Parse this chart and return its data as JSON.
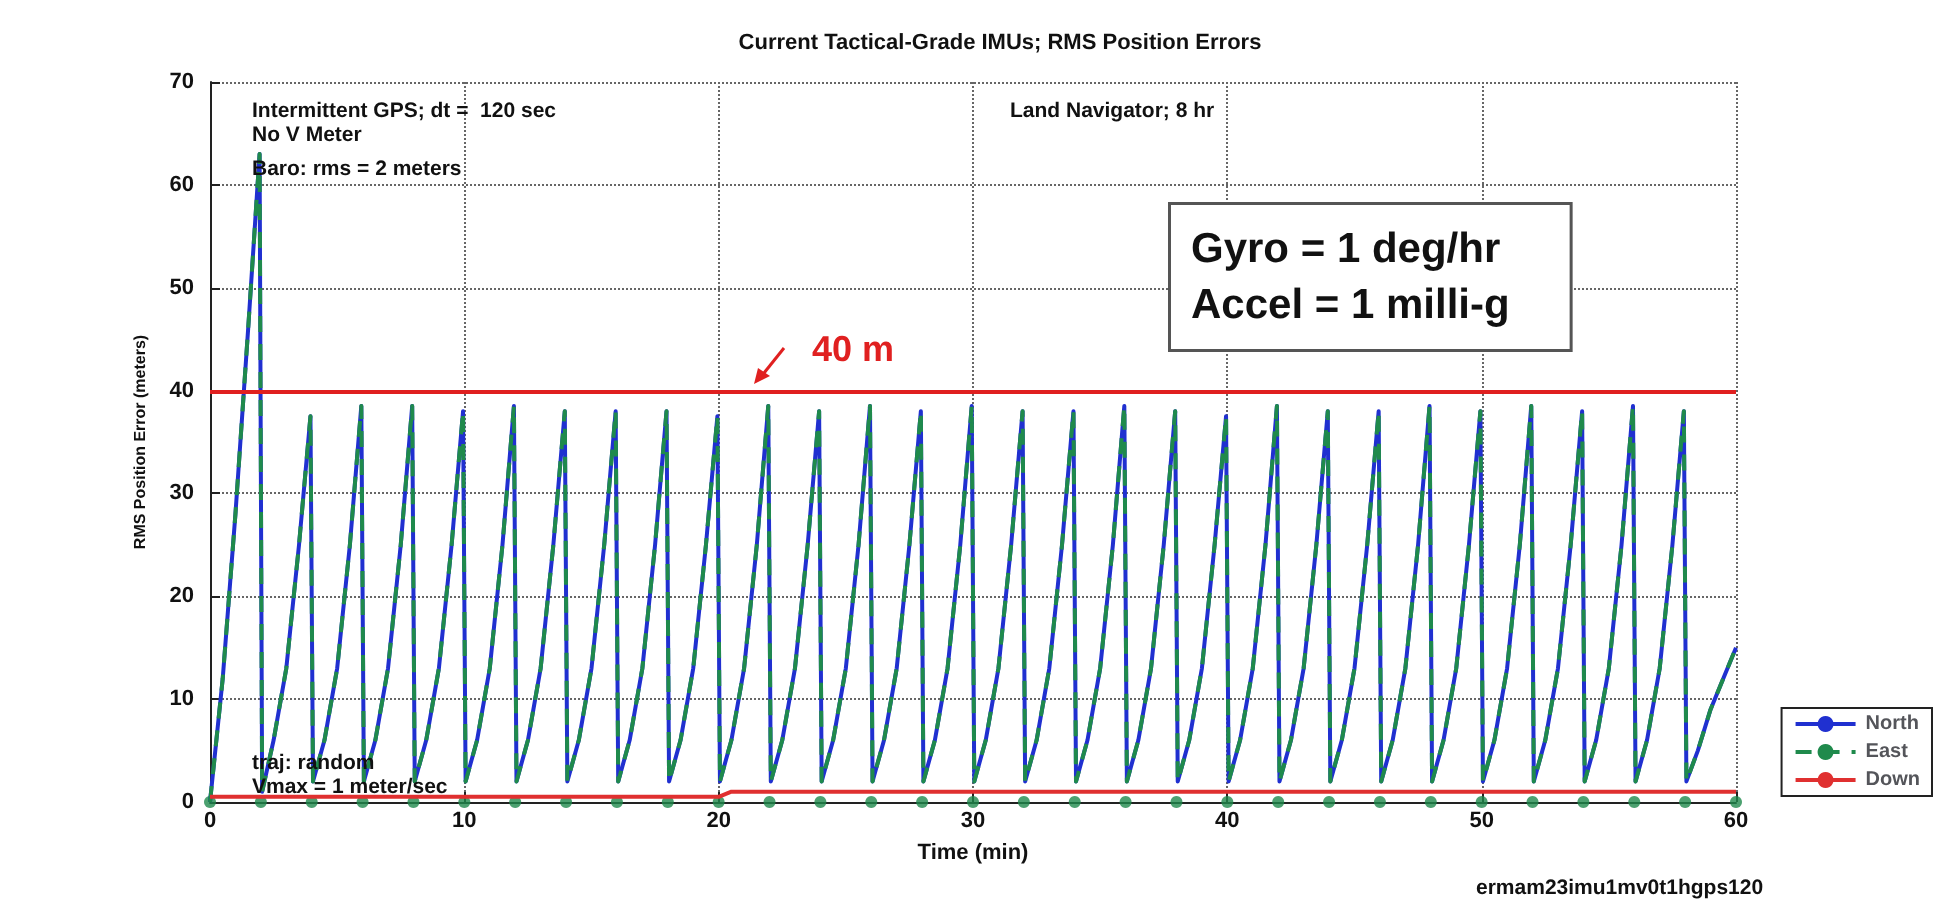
{
  "chart_data": {
    "type": "line",
    "title": "Current Tactical-Grade IMUs; RMS Position Errors",
    "xlabel": "Time (min)",
    "ylabel": "RMS Position Error (meters)",
    "xlim": [
      0,
      60
    ],
    "xticks": [
      0,
      10,
      20,
      30,
      40,
      50,
      60
    ],
    "ylim": [
      0,
      70
    ],
    "yticks": [
      0,
      10,
      20,
      30,
      40,
      50,
      60,
      70
    ],
    "grid": true,
    "legend": "bottom right",
    "marker": "none",
    "line_style": "solid",
    "x": [
      0,
      0.5,
      1,
      1.5,
      1.95,
      2.05,
      2.5,
      3,
      3.5,
      3.95,
      4.05,
      4.5,
      5,
      5.5,
      5.95,
      6.05,
      6.5,
      7,
      7.5,
      7.95,
      8.05,
      8.5,
      9,
      9.5,
      9.95,
      10.05,
      10.5,
      11,
      11.5,
      11.95,
      12.05,
      12.5,
      13,
      13.5,
      13.95,
      14.05,
      14.5,
      15,
      15.5,
      15.95,
      16.05,
      16.5,
      17,
      17.5,
      17.95,
      18.05,
      18.5,
      19,
      19.5,
      19.95,
      20.05,
      20.5,
      21,
      21.5,
      21.95,
      22.05,
      22.5,
      23,
      23.5,
      23.95,
      24.05,
      24.5,
      25,
      25.5,
      25.95,
      26.05,
      26.5,
      27,
      27.5,
      27.95,
      28.05,
      28.5,
      29,
      29.5,
      29.95,
      30.05,
      30.5,
      31,
      31.5,
      31.95,
      32.05,
      32.5,
      33,
      33.5,
      33.95,
      34.05,
      34.5,
      35,
      35.5,
      35.95,
      36.05,
      36.5,
      37,
      37.5,
      37.95,
      38.05,
      38.5,
      39,
      39.5,
      39.95,
      40.05,
      40.5,
      41,
      41.5,
      41.95,
      42.05,
      42.5,
      43,
      43.5,
      43.95,
      44.05,
      44.5,
      45,
      45.5,
      45.95,
      46.05,
      46.5,
      47,
      47.5,
      47.95,
      48.05,
      48.5,
      49,
      49.5,
      49.95,
      50.05,
      50.5,
      51,
      51.5,
      51.95,
      52.05,
      52.5,
      53,
      53.5,
      53.95,
      54.05,
      54.5,
      55,
      55.5,
      55.95,
      56.05,
      56.5,
      57,
      57.5,
      57.95,
      58.05,
      58.5,
      59,
      59.5,
      60
    ],
    "series": [
      {
        "name": "North",
        "color": "#2030d0",
        "values": [
          0,
          12,
          28,
          46,
          63,
          1,
          6,
          13,
          25,
          37.5,
          2,
          6,
          13,
          25,
          38.5,
          2,
          6,
          13,
          25,
          38.5,
          2,
          6,
          13,
          25,
          38,
          2,
          6,
          13,
          25,
          38.5,
          2,
          6,
          13,
          25,
          38,
          2,
          6,
          13,
          25,
          38,
          2,
          6,
          13,
          25,
          38,
          2,
          6,
          13,
          25,
          37.5,
          2,
          6,
          13,
          25,
          38.5,
          2,
          6,
          13,
          25,
          38,
          2,
          6,
          13,
          25,
          38.5,
          2,
          6,
          13,
          25,
          38,
          2,
          6,
          13,
          25,
          38.5,
          2,
          6,
          13,
          25,
          38,
          2,
          6,
          13,
          25,
          38,
          2,
          6,
          13,
          25,
          38.5,
          2,
          6,
          13,
          25,
          38,
          2,
          6,
          13,
          25,
          37.5,
          2,
          6,
          13,
          25,
          38.5,
          2,
          6,
          13,
          25,
          38,
          2,
          6,
          13,
          25,
          38,
          2,
          6,
          13,
          25,
          38.5,
          2,
          6,
          13,
          25,
          38,
          2,
          6,
          13,
          25,
          38.5,
          2,
          6,
          13,
          25,
          38,
          2,
          6,
          13,
          25,
          38.5,
          2,
          6,
          13,
          25,
          38,
          2,
          5,
          9,
          12,
          15
        ]
      },
      {
        "name": "East",
        "color": "#1f8a4c",
        "line_style": "dashed",
        "values": [
          0,
          12,
          28,
          46,
          63,
          1,
          6,
          13,
          25,
          37.5,
          2,
          6,
          13,
          25,
          38.5,
          2,
          6,
          13,
          25,
          38.5,
          2,
          6,
          13,
          25,
          38,
          2,
          6,
          13,
          25,
          38.5,
          2,
          6,
          13,
          25,
          38,
          2,
          6,
          13,
          25,
          38,
          2,
          6,
          13,
          25,
          38,
          2,
          6,
          13,
          25,
          37.5,
          2,
          6,
          13,
          25,
          38.5,
          2,
          6,
          13,
          25,
          38,
          2,
          6,
          13,
          25,
          38.5,
          2,
          6,
          13,
          25,
          38,
          2,
          6,
          13,
          25,
          38.5,
          2,
          6,
          13,
          25,
          38,
          2,
          6,
          13,
          25,
          38,
          2,
          6,
          13,
          25,
          38.5,
          2,
          6,
          13,
          25,
          38,
          2,
          6,
          13,
          25,
          37.5,
          2,
          6,
          13,
          25,
          38.5,
          2,
          6,
          13,
          25,
          38,
          2,
          6,
          13,
          25,
          38,
          2,
          6,
          13,
          25,
          38.5,
          2,
          6,
          13,
          25,
          38,
          2,
          6,
          13,
          25,
          38.5,
          2,
          6,
          13,
          25,
          38,
          2,
          6,
          13,
          25,
          38.5,
          2,
          6,
          13,
          25,
          38,
          2,
          5,
          9,
          12,
          15
        ]
      },
      {
        "name": "Down",
        "color": "#e03030",
        "x": [
          0,
          20,
          20.5,
          60
        ],
        "values": [
          0.5,
          0.5,
          1,
          1
        ]
      },
      {
        "type": "scatter",
        "color": "#1f8a4c",
        "marker": "circle",
        "x": [
          0,
          2,
          4,
          6,
          8,
          10,
          12,
          14,
          16,
          18,
          20,
          22,
          24,
          26,
          28,
          30,
          32,
          34,
          36,
          38,
          40,
          42,
          44,
          46,
          48,
          50,
          52,
          54,
          56,
          58,
          60
        ],
        "values": [
          0,
          0,
          0,
          0,
          0,
          0,
          0,
          0,
          0,
          0,
          0,
          0,
          0,
          0,
          0,
          0,
          0,
          0,
          0,
          0,
          0,
          0,
          0,
          0,
          0,
          0,
          0,
          0,
          0,
          0,
          0
        ]
      }
    ],
    "ref_lines": [
      {
        "axis": "y",
        "value": 40,
        "label": "40 m",
        "color": "#e02020"
      }
    ],
    "annotations": [
      "Intermittent GPS; dt =  120 sec",
      "No V Meter",
      "Baro: rms = 2 meters",
      "Land Navigator; 8 hr",
      "Gyro = 1 deg/hr\nAccel = 1 milli-g",
      "traj: random",
      "Vmax = 1 meter/sec",
      "ermam23imu1mv0t1hgps120"
    ]
  }
}
